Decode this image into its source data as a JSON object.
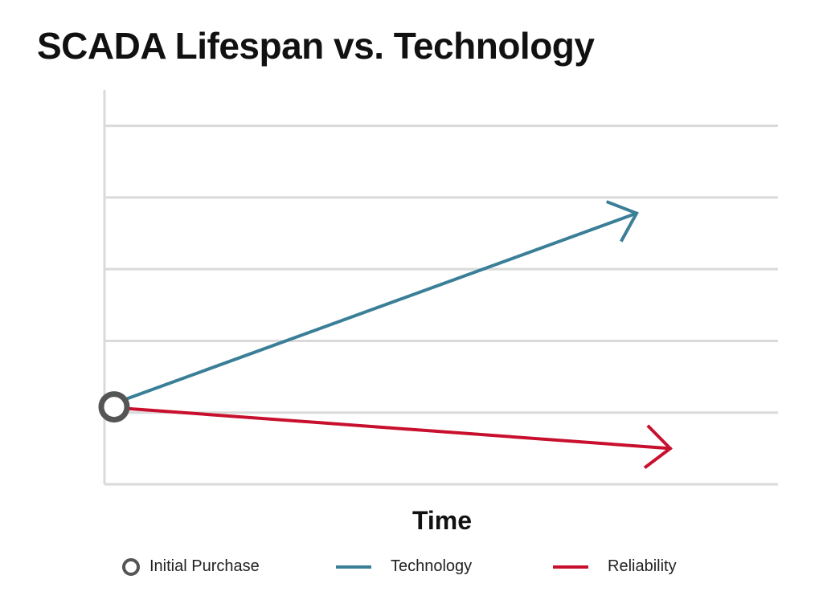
{
  "title": "SCADA Lifespan vs. Technology",
  "chart_data": {
    "type": "line",
    "title": "SCADA Lifespan vs. Technology",
    "xlabel": "Time",
    "ylabel": "",
    "grid": true,
    "xlim": [
      0,
      10
    ],
    "ylim": [
      0,
      5.5
    ],
    "origin": {
      "name": "Initial Purchase",
      "x": 0,
      "y": 1.08
    },
    "series": [
      {
        "name": "Technology",
        "color": "#3a7f97",
        "x": [
          0,
          7.9
        ],
        "y": [
          1.08,
          3.78
        ],
        "marker_end": "arrow"
      },
      {
        "name": "Reliability",
        "color": "#c8102e",
        "x": [
          0,
          8.4
        ],
        "y": [
          1.08,
          0.5
        ],
        "marker_end": "arrow"
      }
    ]
  },
  "legend": {
    "position": "bottom",
    "items": [
      {
        "label": "Initial Purchase",
        "type": "circle",
        "color": "#555555"
      },
      {
        "label": "Technology",
        "type": "line",
        "color": "#3a7f97"
      },
      {
        "label": "Reliability",
        "type": "line",
        "color": "#c8102e"
      }
    ]
  }
}
